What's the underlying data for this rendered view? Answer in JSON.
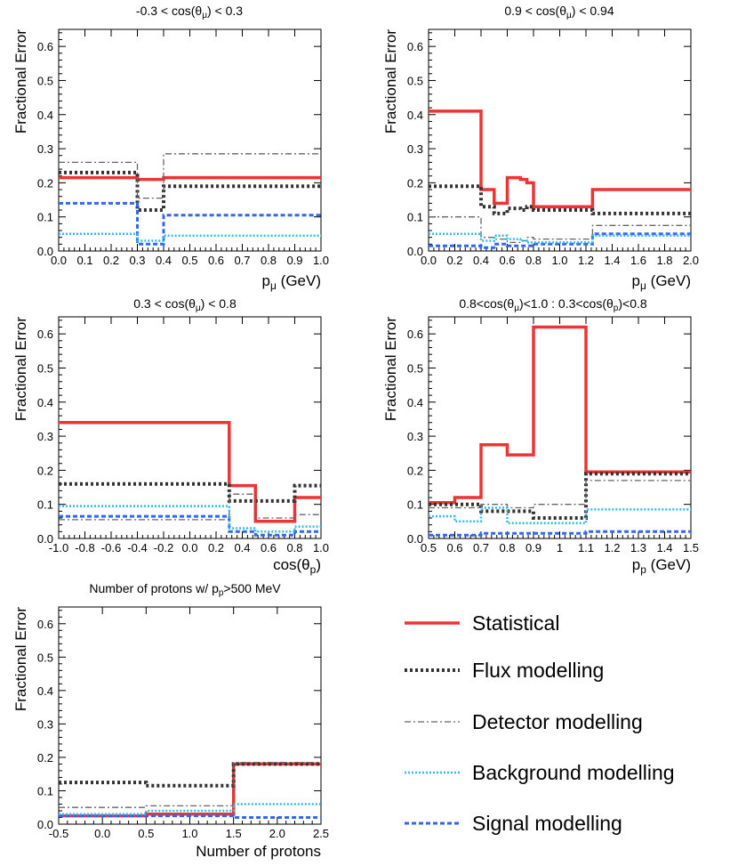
{
  "legend": {
    "items": [
      {
        "key": "stat",
        "label": "Statistical"
      },
      {
        "key": "flux",
        "label": "Flux modelling"
      },
      {
        "key": "det",
        "label": "Detector modelling"
      },
      {
        "key": "bkg",
        "label": "Background modelling"
      },
      {
        "key": "sig",
        "label": "Signal modelling"
      }
    ]
  },
  "styles": {
    "stat": {
      "color": "#ee3333"
    },
    "flux": {
      "color": "#333333"
    },
    "det": {
      "color": "#666666"
    },
    "bkg": {
      "color": "#33bbee"
    },
    "sig": {
      "color": "#3366ee"
    }
  },
  "chart_data": [
    {
      "type": "step-histogram",
      "title": "-0.3 < cos(θμ) < 0.3",
      "ylabel": "Fractional Error",
      "xlabel": "pμ (GeV)",
      "xlim": [
        0,
        1
      ],
      "ylim": [
        0,
        0.65
      ],
      "xticks": [
        "0.0",
        "0.1",
        "0.2",
        "0.3",
        "0.4",
        "0.5",
        "0.6",
        "0.7",
        "0.8",
        "0.9",
        "1.0"
      ],
      "yticks": [
        "0.0",
        "0.1",
        "0.2",
        "0.3",
        "0.4",
        "0.5",
        "0.6"
      ],
      "edges": [
        0,
        0.3,
        0.4,
        1.0
      ],
      "series": [
        {
          "key": "det",
          "values": [
            0.26,
            0.155,
            0.285
          ]
        },
        {
          "key": "flux",
          "values": [
            0.23,
            0.12,
            0.19
          ]
        },
        {
          "key": "stat",
          "values": [
            0.215,
            0.21,
            0.215
          ]
        },
        {
          "key": "sig",
          "values": [
            0.14,
            0.02,
            0.105
          ]
        },
        {
          "key": "bkg",
          "values": [
            0.05,
            0.03,
            0.045
          ]
        }
      ]
    },
    {
      "type": "step-histogram",
      "title": "0.9 < cos(θμ) < 0.94",
      "ylabel": "Fractional Error",
      "xlabel": "pμ (GeV)",
      "xlim": [
        0,
        2
      ],
      "ylim": [
        0,
        0.65
      ],
      "xticks": [
        "0.0",
        "0.2",
        "0.4",
        "0.6",
        "0.8",
        "1.0",
        "1.2",
        "1.4",
        "1.6",
        "1.8",
        "2.0"
      ],
      "yticks": [
        "0.0",
        "0.1",
        "0.2",
        "0.3",
        "0.4",
        "0.5",
        "0.6"
      ],
      "edges": [
        0,
        0.4,
        0.5,
        0.6,
        0.7,
        0.75,
        0.8,
        1.25,
        2.0
      ],
      "series": [
        {
          "key": "stat",
          "values": [
            0.41,
            0.18,
            0.14,
            0.215,
            0.21,
            0.2,
            0.13,
            0.18
          ]
        },
        {
          "key": "flux",
          "values": [
            0.19,
            0.13,
            0.11,
            0.125,
            0.12,
            0.13,
            0.12,
            0.11
          ]
        },
        {
          "key": "det",
          "values": [
            0.1,
            0.04,
            0.035,
            0.025,
            0.03,
            0.04,
            0.035,
            0.075
          ]
        },
        {
          "key": "bkg",
          "values": [
            0.05,
            0.03,
            0.045,
            0.035,
            0.03,
            0.025,
            0.025,
            0.045
          ]
        },
        {
          "key": "sig",
          "values": [
            0.015,
            0.01,
            0.02,
            0.015,
            0.015,
            0.015,
            0.02,
            0.05
          ]
        }
      ]
    },
    {
      "type": "step-histogram",
      "title": "0.3 < cos(θμ) < 0.8",
      "ylabel": "Fractional Error",
      "xlabel": "cos(θp)",
      "xlim": [
        -1,
        1
      ],
      "ylim": [
        0,
        0.65
      ],
      "xticks": [
        "-1.0",
        "-0.8",
        "-0.6",
        "-0.4",
        "-0.2",
        "0.0",
        "0.2",
        "0.4",
        "0.6",
        "0.8",
        "1.0"
      ],
      "yticks": [
        "0.0",
        "0.1",
        "0.2",
        "0.3",
        "0.4",
        "0.5",
        "0.6"
      ],
      "edges": [
        -1,
        0.3,
        0.5,
        0.8,
        1.0
      ],
      "series": [
        {
          "key": "stat",
          "values": [
            0.34,
            0.155,
            0.05,
            0.12
          ]
        },
        {
          "key": "flux",
          "values": [
            0.16,
            0.11,
            0.11,
            0.155
          ]
        },
        {
          "key": "det",
          "values": [
            0.055,
            0.13,
            0.06,
            0.07
          ]
        },
        {
          "key": "bkg",
          "values": [
            0.095,
            0.03,
            0.02,
            0.035
          ]
        },
        {
          "key": "sig",
          "values": [
            0.065,
            0.02,
            0.01,
            0.02
          ]
        }
      ]
    },
    {
      "type": "step-histogram",
      "title": "0.8<cos(θμ)<1.0 : 0.3<cos(θp)<0.8",
      "ylabel": "Fractional Error",
      "xlabel": "pp (GeV)",
      "xlim": [
        0.5,
        1.5
      ],
      "ylim": [
        0,
        0.65
      ],
      "xticks": [
        "0.5",
        "0.6",
        "0.7",
        "0.8",
        "0.9",
        "1",
        "1.1",
        "1.2",
        "1.3",
        "1.4",
        "1.5"
      ],
      "yticks": [
        "0.0",
        "0.1",
        "0.2",
        "0.3",
        "0.4",
        "0.5",
        "0.6"
      ],
      "edges": [
        0.5,
        0.6,
        0.7,
        0.8,
        0.9,
        1.1,
        1.5
      ],
      "series": [
        {
          "key": "stat",
          "values": [
            0.105,
            0.12,
            0.275,
            0.245,
            0.62,
            0.195
          ]
        },
        {
          "key": "flux",
          "values": [
            0.1,
            0.1,
            0.08,
            0.08,
            0.06,
            0.19
          ]
        },
        {
          "key": "det",
          "values": [
            0.09,
            0.09,
            0.1,
            0.09,
            0.1,
            0.17
          ]
        },
        {
          "key": "bkg",
          "values": [
            0.065,
            0.05,
            0.09,
            0.045,
            0.045,
            0.085
          ]
        },
        {
          "key": "sig",
          "values": [
            0.01,
            0.01,
            0.015,
            0.015,
            0.015,
            0.02
          ]
        }
      ]
    },
    {
      "type": "step-histogram",
      "title": "Number of protons w/ pp>500 MeV",
      "ylabel": "Fractional Error",
      "xlabel": "Number of protons",
      "xlim": [
        -0.5,
        2.5
      ],
      "ylim": [
        0,
        0.65
      ],
      "xticks": [
        "-0.5",
        "0.0",
        "0.5",
        "1.0",
        "1.5",
        "2.0",
        "2.5"
      ],
      "yticks": [
        "0.0",
        "0.1",
        "0.2",
        "0.3",
        "0.4",
        "0.5",
        "0.6"
      ],
      "edges": [
        -0.5,
        0.5,
        1.5,
        2.5
      ],
      "series": [
        {
          "key": "flux",
          "values": [
            0.125,
            0.115,
            0.18
          ]
        },
        {
          "key": "stat",
          "values": [
            0.025,
            0.03,
            0.18
          ]
        },
        {
          "key": "det",
          "values": [
            0.05,
            0.055,
            0.185
          ]
        },
        {
          "key": "bkg",
          "values": [
            0.03,
            0.04,
            0.06
          ]
        },
        {
          "key": "sig",
          "values": [
            0.025,
            0.025,
            0.02
          ]
        }
      ]
    }
  ]
}
